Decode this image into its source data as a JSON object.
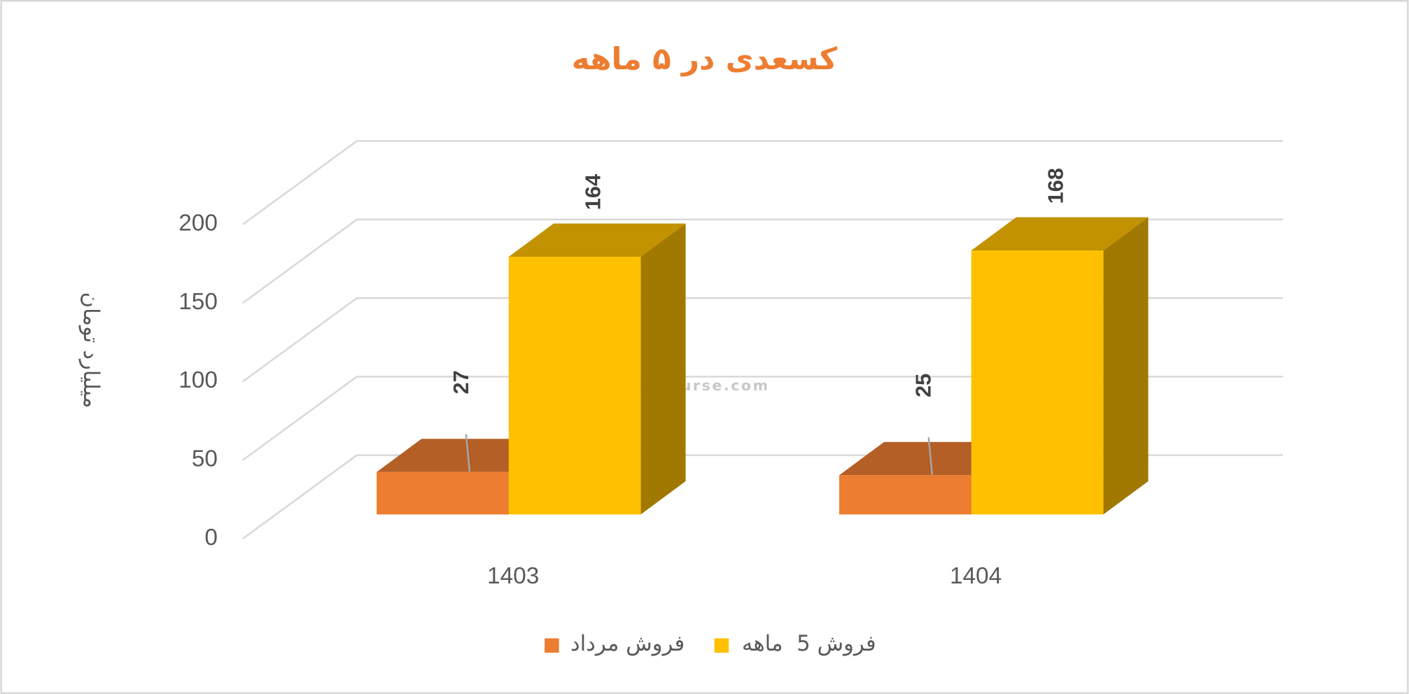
{
  "chart_data": {
    "type": "bar3d",
    "title": "کسعدی در ۵ ماهه",
    "y_label": "میلیارد تومان",
    "categories": [
      "1403",
      "1404"
    ],
    "series": [
      {
        "name": "فروش مرداد",
        "color": "#ED7D31",
        "values": [
          27,
          25
        ]
      },
      {
        "name": "فروش 5  ماهه",
        "color": "#FFC000",
        "values": [
          164,
          168
        ]
      }
    ],
    "ylim": [
      0,
      200
    ],
    "yticks": [
      0,
      50,
      100,
      150,
      200
    ],
    "grid": true,
    "legend": "bottom",
    "watermark": "nabzebourse.com"
  }
}
